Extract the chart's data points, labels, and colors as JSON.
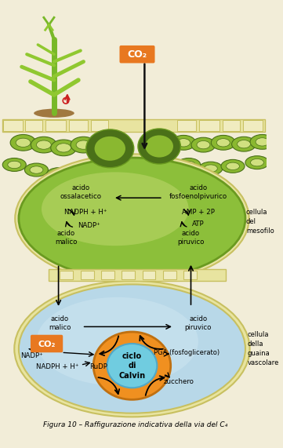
{
  "fig_width": 3.61,
  "fig_height": 5.71,
  "dpi": 100,
  "bg_color": "#f2edd8",
  "title": "Figura 10 – Raffigurazione indicativa della via del C₄",
  "colors": {
    "green_meso": "#8cbf3a",
    "green_meso_edge": "#6a9a20",
    "green_dark": "#4a7018",
    "green_light": "#b8d060",
    "green_pale": "#d0e080",
    "green_chloro": "#8ab830",
    "green_chloro_inner": "#6a9820",
    "yellow_cream": "#e8e4a0",
    "yellow_pale": "#f0ecc0",
    "blue_cell": "#b8d8e8",
    "blue_light": "#cce4f0",
    "cream_connector": "#e8e0a0",
    "orange_co2": "#e87820",
    "orange_cycle": "#f09020",
    "cyan_cycle": "#70cce0",
    "red_arrow": "#cc2020",
    "connector_edge": "#c8c060",
    "black": "#111111",
    "white": "#ffffff",
    "plant_stem": "#78b828",
    "plant_leaf": "#90c830",
    "soil": "#a07840"
  },
  "labels": {
    "co2_top": "CO₂",
    "acido_ossalacetico": "acido\nossalacetico",
    "acido_fosfoenolpivurico": "acido\nfosfoenolpivurico",
    "nadph_h": "NADPH + H⁺",
    "nadp": "NADP⁺",
    "amp_2p": "AMP + 2P",
    "atp": "ATP",
    "acido_malico_top": "acido\nmalico",
    "acido_piruvico_top": "acido\npiruvico",
    "acido_malico_bot": "acido\nmalico",
    "acido_piruvico_bot": "acido\npiruvico",
    "co2_small": "CO₂",
    "nadp_bot": "NADP⁺",
    "nadph_h_bot": "NADPH + H⁺",
    "rudp": "RuDP",
    "pga": "PGA (fosfoglicerato)",
    "ciclo_di_calvin": "ciclo\ndi\nCalvin",
    "zucchero": "zucchero",
    "cellula_mesofilo": "cellula\ndel\nmesofilo",
    "cellula_guaina": "cellula\ndella\nguaina\nvascolare"
  }
}
